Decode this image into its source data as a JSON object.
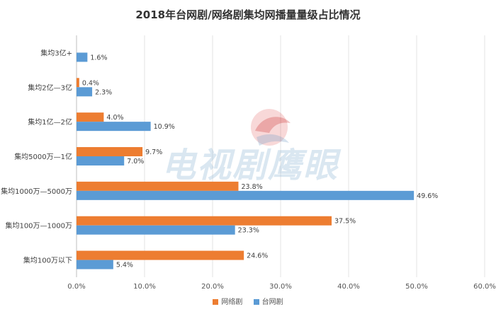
{
  "chart_data": {
    "type": "bar",
    "orientation": "horizontal",
    "title": "2018年台网剧/网络剧集均网播量量级占比情况",
    "categories": [
      "集均3亿+",
      "集均2亿—3亿",
      "集均1亿—2亿",
      "集均5000万—1亿",
      "集均1000万—5000万",
      "集均100万—1000万",
      "集均100万以下"
    ],
    "series": [
      {
        "name": "网络剧",
        "color": "#ed7d31",
        "values": [
          null,
          0.4,
          4.0,
          9.7,
          23.8,
          37.5,
          24.6
        ],
        "labels": [
          "",
          "0.4%",
          "4.0%",
          "9.7%",
          "23.8%",
          "37.5%",
          "24.6%"
        ]
      },
      {
        "name": "台网剧",
        "color": "#5b9bd5",
        "values": [
          1.6,
          2.3,
          10.9,
          7.0,
          49.6,
          23.3,
          5.4
        ],
        "labels": [
          "1.6%",
          "2.3%",
          "10.9%",
          "7.0%",
          "49.6%",
          "23.3%",
          "5.4%"
        ]
      }
    ],
    "xlim": [
      0,
      60
    ],
    "ticks": [
      0,
      10,
      20,
      30,
      40,
      50,
      60
    ],
    "tick_labels": [
      "0.0%",
      "10.0%",
      "20.0%",
      "30.0%",
      "40.0%",
      "50.0%",
      "60.0%"
    ],
    "grid": true,
    "legend": "bottom"
  },
  "watermark": {
    "text": "电视剧鹰眼"
  }
}
